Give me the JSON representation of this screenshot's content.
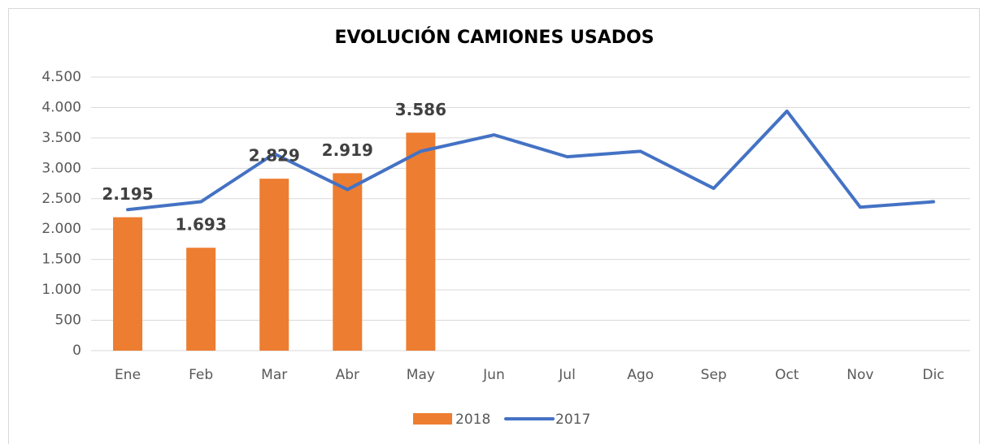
{
  "chart_data": {
    "type": "bar",
    "title": "EVOLUCIÓN CAMIONES USADOS",
    "categories": [
      "Ene",
      "Feb",
      "Mar",
      "Abr",
      "May",
      "Jun",
      "Jul",
      "Ago",
      "Sep",
      "Oct",
      "Nov",
      "Dic"
    ],
    "series": [
      {
        "name": "2018",
        "type": "bar",
        "color": "#ED7D31",
        "values": [
          2195,
          1693,
          2829,
          2919,
          3586,
          null,
          null,
          null,
          null,
          null,
          null,
          null
        ],
        "value_labels": [
          "2.195",
          "1.693",
          "2.829",
          "2.919",
          "3.586",
          null,
          null,
          null,
          null,
          null,
          null,
          null
        ]
      },
      {
        "name": "2017",
        "type": "line",
        "color": "#4472C4",
        "values": [
          2320,
          2450,
          3240,
          2650,
          3280,
          3550,
          3190,
          3280,
          2670,
          3940,
          2360,
          2450
        ]
      }
    ],
    "ylim": [
      0,
      4500
    ],
    "yticks": [
      0,
      500,
      {
        "value": 1000,
        "label": "1.000"
      },
      {
        "value": 1500,
        "label": "1.500"
      },
      {
        "value": 2000,
        "label": "2.000"
      },
      {
        "value": 2500,
        "label": "2.500"
      },
      {
        "value": 3000,
        "label": "3.000"
      },
      {
        "value": 3500,
        "label": "3.500"
      },
      {
        "value": 4000,
        "label": "4.000"
      },
      {
        "value": 4500,
        "label": "4.500"
      }
    ],
    "grid": true,
    "legend": "bottom"
  }
}
